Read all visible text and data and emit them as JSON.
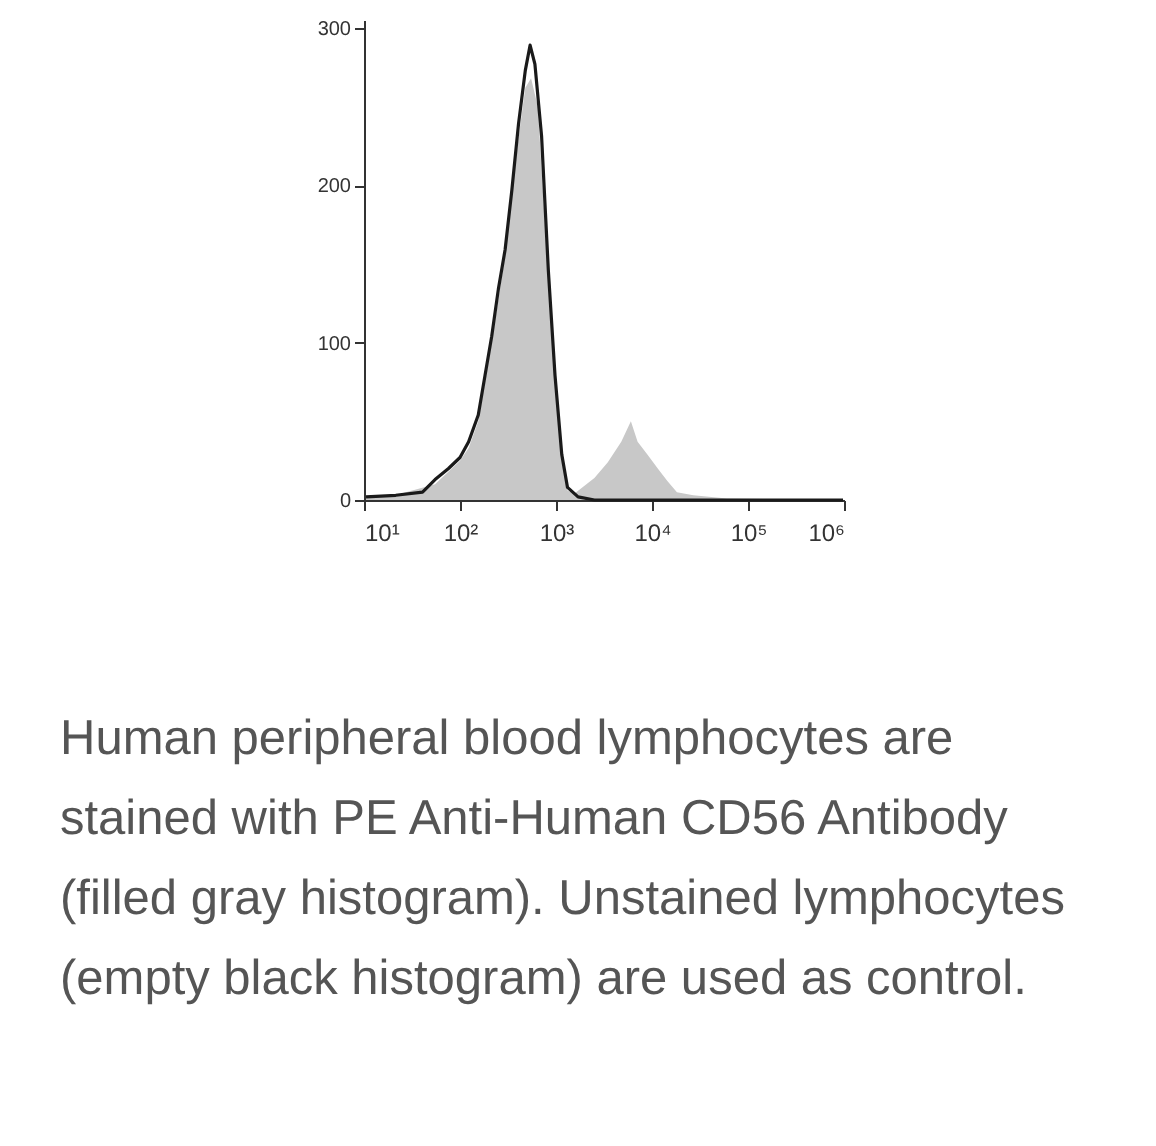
{
  "chart_data": {
    "type": "area",
    "log": "x",
    "xlim": [
      10,
      1000000
    ],
    "ylim": [
      0,
      305
    ],
    "xticks": [
      {
        "value": 10,
        "label": "10¹"
      },
      {
        "value": 100,
        "label": "10²"
      },
      {
        "value": 1000,
        "label": "10³"
      },
      {
        "value": 10000,
        "label": "10⁴"
      },
      {
        "value": 100000,
        "label": "10⁵"
      },
      {
        "value": 1000000,
        "label": "10⁶"
      }
    ],
    "yticks": [
      0,
      100,
      200,
      300
    ],
    "series": [
      {
        "type": "area",
        "color": "#c8c8c8",
        "x": [
          10.5,
          21,
          55,
          100,
          123,
          155,
          214,
          295,
          407,
          479,
          550,
          646,
          832,
          977,
          1148,
          1318,
          1549,
          2512,
          3467,
          4786,
          6026,
          7079,
          8913,
          11482,
          14454,
          18197,
          26915,
          60256,
          977000
        ],
        "values": [
          2,
          3,
          10,
          25,
          33,
          50,
          100,
          155,
          230,
          262,
          268,
          250,
          140,
          75,
          25,
          6,
          4,
          14,
          24,
          37,
          50,
          37,
          29,
          20,
          12,
          5,
          3,
          1,
          0
        ]
      },
      {
        "type": "line",
        "color": "#1a1a1a",
        "x": [
          10.5,
          21.4,
          40.7,
          55,
          75.9,
          100,
          123,
          155,
          182,
          214,
          251,
          295,
          347,
          407,
          479,
          537,
          603,
          708,
          832,
          977,
          1148,
          1318,
          1698,
          2512,
          977000
        ],
        "values": [
          2,
          3,
          5,
          13,
          20,
          27,
          37,
          54,
          79,
          104,
          134,
          159,
          197,
          239,
          273,
          289,
          277,
          231,
          146,
          79,
          29,
          8,
          2,
          0,
          0
        ]
      }
    ],
    "annotations": [
      "Human peripheral blood lymphocytes are stained with PE Anti-Human CD56 Antibody (filled gray histogram). Unstained lymphocytes (empty black histogram) are used as control."
    ]
  }
}
